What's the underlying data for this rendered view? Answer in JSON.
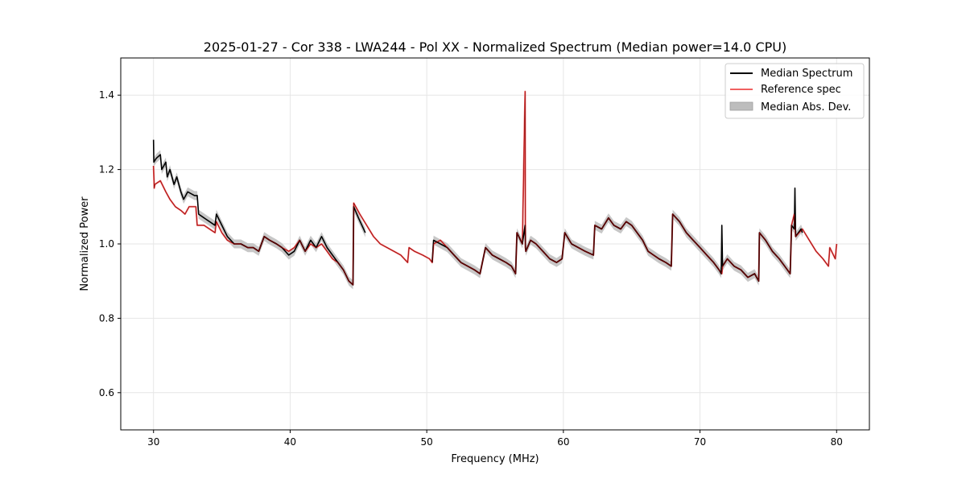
{
  "chart_data": {
    "type": "line",
    "title": "2025-01-27 - Cor 338 - LWA244 - Pol XX - Normalized Spectrum (Median power=14.0 CPU)",
    "xlabel": "Frequency (MHz)",
    "ylabel": "Normalized Power",
    "xlim": [
      27.6,
      82.4
    ],
    "ylim": [
      0.5,
      1.5
    ],
    "xticks": [
      30,
      40,
      50,
      60,
      70,
      80
    ],
    "yticks": [
      0.6,
      0.8,
      1.0,
      1.2,
      1.4
    ],
    "xtick_labels": [
      "30",
      "40",
      "50",
      "60",
      "70",
      "80"
    ],
    "ytick_labels": [
      "0.6",
      "0.8",
      "1.0",
      "1.2",
      "1.4"
    ],
    "grid": true,
    "legend_position": "top-right",
    "legend": {
      "median": "Median Spectrum",
      "reference": "Reference spec",
      "mad": "Median Abs. Dev."
    },
    "colors": {
      "median": "#000000",
      "reference": "#f06060",
      "mad": "#bdbdbd",
      "grid": "#e6e6e6"
    },
    "series": [
      {
        "name": "Reference spec",
        "x": [
          30.0,
          30.05,
          30.1,
          30.5,
          30.9,
          31.2,
          31.6,
          32.0,
          32.3,
          32.6,
          33.1,
          33.2,
          33.7,
          34.1,
          34.5,
          34.6,
          35.0,
          35.4,
          35.9,
          36.4,
          36.9,
          37.3,
          37.7,
          38.1,
          38.5,
          39.0,
          39.4,
          39.9,
          40.3,
          40.7,
          41.1,
          41.5,
          41.9,
          42.3,
          42.7,
          43.1,
          43.5,
          43.9,
          44.3,
          44.6,
          44.65,
          45.1,
          45.6,
          46.1,
          46.6,
          47.1,
          47.6,
          48.1,
          48.6,
          48.7,
          49.1,
          49.7,
          50.2,
          50.4,
          50.5,
          51.0,
          51.5,
          52.0,
          52.5,
          53.0,
          53.5,
          53.9,
          54.3,
          54.8,
          55.3,
          55.8,
          56.2,
          56.5,
          56.6,
          57.0,
          57.2,
          57.22,
          57.25,
          57.6,
          58.0,
          58.5,
          59.0,
          59.5,
          59.9,
          60.1,
          60.6,
          61.1,
          61.6,
          62.2,
          62.3,
          62.8,
          63.3,
          63.7,
          64.2,
          64.6,
          65.0,
          65.4,
          65.8,
          66.2,
          66.6,
          67.0,
          67.5,
          67.9,
          68.0,
          68.5,
          69.0,
          69.5,
          70.0,
          70.5,
          71.0,
          71.4,
          71.6,
          71.65,
          72.0,
          72.5,
          73.0,
          73.5,
          74.0,
          74.3,
          74.35,
          74.8,
          75.3,
          75.8,
          76.2,
          76.6,
          76.7,
          76.9,
          77.0,
          77.5,
          78.0,
          78.5,
          79.0,
          79.4,
          79.5,
          79.9,
          80.0
        ],
        "y": [
          1.21,
          1.15,
          1.16,
          1.17,
          1.14,
          1.12,
          1.1,
          1.09,
          1.08,
          1.1,
          1.1,
          1.05,
          1.05,
          1.04,
          1.03,
          1.06,
          1.03,
          1.01,
          1.0,
          1.0,
          0.99,
          0.99,
          0.98,
          1.02,
          1.01,
          1.0,
          0.99,
          0.98,
          0.99,
          1.01,
          0.98,
          1.0,
          0.99,
          1.0,
          0.98,
          0.96,
          0.95,
          0.93,
          0.9,
          0.89,
          1.11,
          1.08,
          1.05,
          1.02,
          1.0,
          0.99,
          0.98,
          0.97,
          0.95,
          0.99,
          0.98,
          0.97,
          0.96,
          0.95,
          1.0,
          1.01,
          0.99,
          0.97,
          0.95,
          0.94,
          0.93,
          0.92,
          0.99,
          0.97,
          0.96,
          0.95,
          0.94,
          0.92,
          1.03,
          1.0,
          1.41,
          0.99,
          0.98,
          1.01,
          1.0,
          0.98,
          0.96,
          0.95,
          0.96,
          1.03,
          1.0,
          0.99,
          0.98,
          0.97,
          1.05,
          1.04,
          1.07,
          1.05,
          1.04,
          1.06,
          1.05,
          1.03,
          1.01,
          0.98,
          0.97,
          0.96,
          0.95,
          0.94,
          1.08,
          1.06,
          1.03,
          1.01,
          0.99,
          0.97,
          0.95,
          0.93,
          0.92,
          0.94,
          0.96,
          0.94,
          0.93,
          0.91,
          0.92,
          0.9,
          1.03,
          1.01,
          0.98,
          0.96,
          0.94,
          0.92,
          1.05,
          1.08,
          1.02,
          1.04,
          1.01,
          0.98,
          0.96,
          0.94,
          0.99,
          0.96,
          1.0
        ]
      },
      {
        "name": "Median Spectrum",
        "x": [
          30.0,
          30.02,
          30.2,
          30.5,
          30.6,
          30.9,
          31.0,
          31.2,
          31.5,
          31.7,
          32.0,
          32.2,
          32.5,
          33.0,
          33.2,
          33.3,
          33.7,
          34.1,
          34.5,
          34.6,
          35.0,
          35.4,
          35.9,
          36.4,
          36.9,
          37.3,
          37.7,
          38.1,
          38.5,
          39.0,
          39.4,
          39.9,
          40.3,
          40.7,
          41.1,
          41.5,
          41.9,
          42.3,
          42.7,
          43.1,
          43.5,
          43.9,
          44.3,
          44.6,
          44.65,
          45.0,
          45.5,
          null,
          50.4,
          50.5,
          51.0,
          51.5,
          52.0,
          52.5,
          53.0,
          53.5,
          53.9,
          54.3,
          54.8,
          55.3,
          55.8,
          56.2,
          56.5,
          56.6,
          57.0,
          57.2,
          57.22,
          57.25,
          57.6,
          58.0,
          58.5,
          59.0,
          59.5,
          59.9,
          60.1,
          60.6,
          61.1,
          61.6,
          62.2,
          62.3,
          62.8,
          63.3,
          63.7,
          64.2,
          64.6,
          65.0,
          65.4,
          65.8,
          66.2,
          66.6,
          67.0,
          67.5,
          67.9,
          68.0,
          68.5,
          69.0,
          69.5,
          70.0,
          70.5,
          71.0,
          71.4,
          71.55,
          71.6,
          71.65,
          72.0,
          72.5,
          73.0,
          73.5,
          74.0,
          74.3,
          74.35,
          74.8,
          75.3,
          75.8,
          76.2,
          76.6,
          76.7,
          76.9,
          76.95,
          77.0,
          77.4,
          77.5
        ],
        "y": [
          1.28,
          1.22,
          1.23,
          1.24,
          1.2,
          1.22,
          1.18,
          1.2,
          1.16,
          1.18,
          1.14,
          1.12,
          1.14,
          1.13,
          1.13,
          1.08,
          1.07,
          1.06,
          1.05,
          1.08,
          1.05,
          1.02,
          1.0,
          1.0,
          0.99,
          0.99,
          0.98,
          1.02,
          1.01,
          1.0,
          0.99,
          0.97,
          0.98,
          1.01,
          0.98,
          1.01,
          0.99,
          1.02,
          0.99,
          0.97,
          0.95,
          0.93,
          0.9,
          0.89,
          1.1,
          1.07,
          1.03,
          null,
          0.95,
          1.01,
          1.0,
          0.99,
          0.97,
          0.95,
          0.94,
          0.93,
          0.92,
          0.99,
          0.97,
          0.96,
          0.95,
          0.94,
          0.92,
          1.03,
          1.0,
          1.05,
          0.99,
          0.98,
          1.01,
          1.0,
          0.98,
          0.96,
          0.95,
          0.96,
          1.03,
          1.0,
          0.99,
          0.98,
          0.97,
          1.05,
          1.04,
          1.07,
          1.05,
          1.04,
          1.06,
          1.05,
          1.03,
          1.01,
          0.98,
          0.97,
          0.96,
          0.95,
          0.94,
          1.08,
          1.06,
          1.03,
          1.01,
          0.99,
          0.97,
          0.95,
          0.93,
          0.92,
          1.05,
          0.94,
          0.96,
          0.94,
          0.93,
          0.91,
          0.92,
          0.9,
          1.03,
          1.01,
          0.98,
          0.96,
          0.94,
          0.92,
          1.05,
          1.04,
          1.15,
          1.02,
          1.04,
          1.03
        ]
      }
    ],
    "mad": {
      "name": "Median Abs. Dev.",
      "width": 0.012
    }
  }
}
